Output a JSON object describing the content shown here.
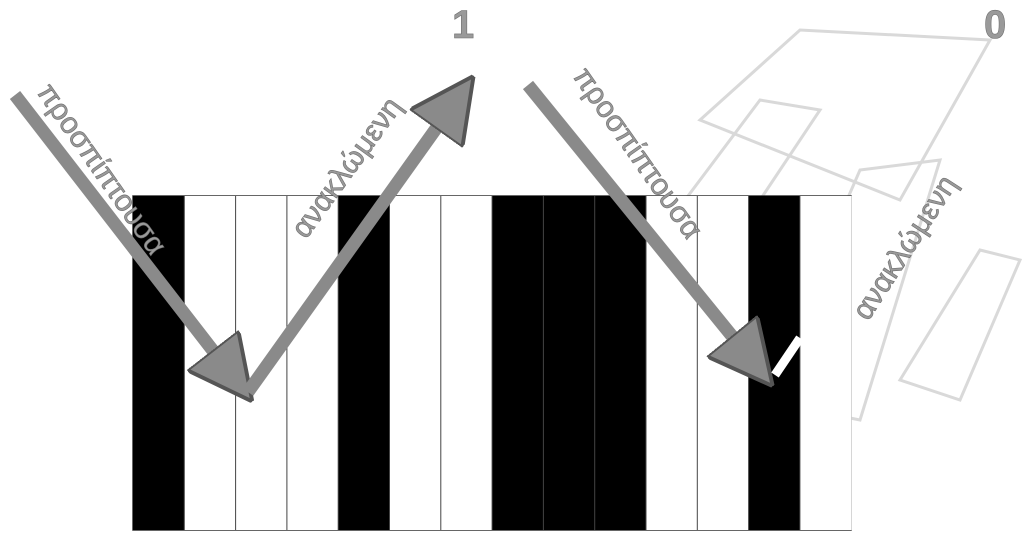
{
  "labels": {
    "bit_one": "1",
    "bit_zero": "0",
    "incident_left": "προσπίπτουσα",
    "reflected_left": "ανακλώμενη",
    "incident_right": "προσπίπτουσα",
    "reflected_right": "ανακλώμενη"
  },
  "barcode": {
    "module_pattern": [
      1,
      0,
      0,
      0,
      1,
      0,
      0,
      1,
      1,
      1,
      0,
      0,
      1,
      0
    ],
    "bar_color": "#000000",
    "space_color": "#ffffff",
    "divider_color": "#444444"
  },
  "colors": {
    "arrow": "#8a8a8a",
    "arrow_outline": "#555555",
    "weak_reflection": "#ffffff",
    "label_text": "#9a9a9a",
    "watermark": "#d6d6d6"
  },
  "watermark": {
    "text": "ΟΕΔΒ"
  }
}
